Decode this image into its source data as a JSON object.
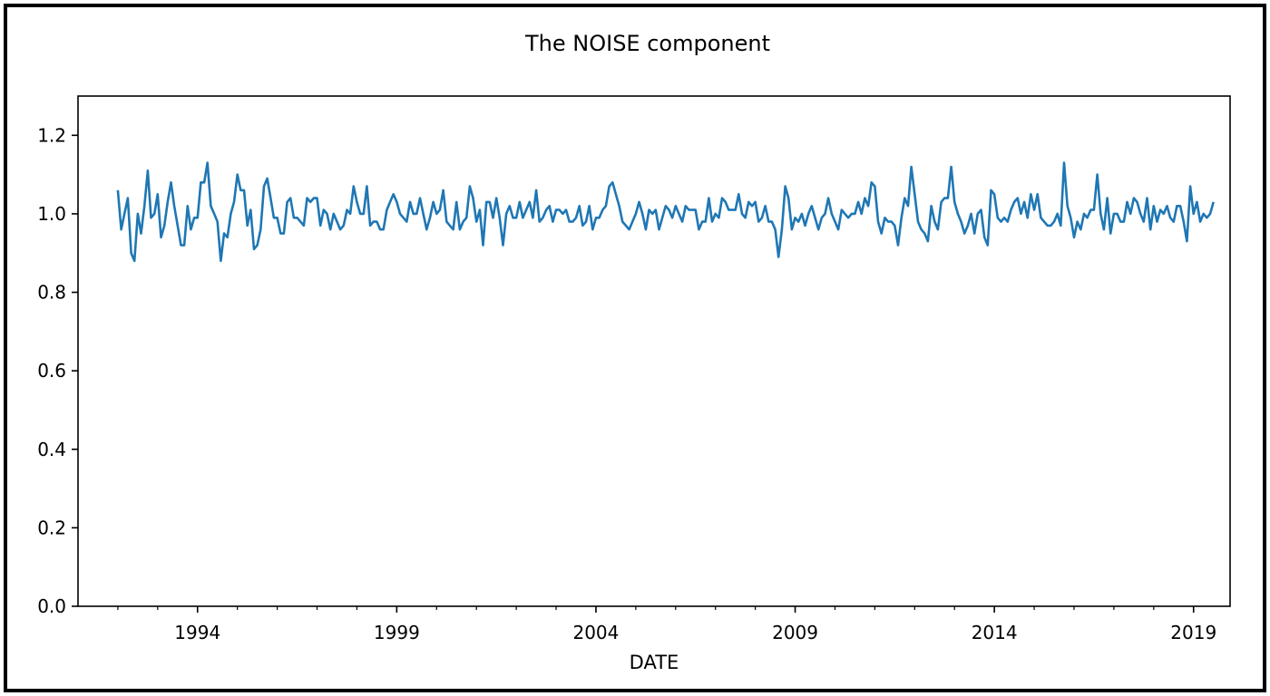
{
  "chart_data": {
    "type": "line",
    "title": "The NOISE component",
    "xlabel": "DATE",
    "ylabel": "",
    "x_start": "1992-01",
    "x_end": "2019-12",
    "x_frequency": "monthly",
    "xlim": [
      "1991-01",
      "2019-12"
    ],
    "ylim": [
      0.0,
      1.3
    ],
    "x_ticks": [
      "1994",
      "1999",
      "2004",
      "2009",
      "2014",
      "2019"
    ],
    "y_ticks": [
      "0.0",
      "0.2",
      "0.4",
      "0.6",
      "0.8",
      "1.0",
      "1.2"
    ],
    "grid": false,
    "legend": "none",
    "series": [
      {
        "color": "#1f77b4",
        "values": [
          1.06,
          0.96,
          1.0,
          1.04,
          0.9,
          0.88,
          1.0,
          0.95,
          1.02,
          1.11,
          0.99,
          1.0,
          1.05,
          0.94,
          0.97,
          1.03,
          1.08,
          1.02,
          0.97,
          0.92,
          0.92,
          1.02,
          0.96,
          0.99,
          0.99,
          1.08,
          1.08,
          1.13,
          1.02,
          1.0,
          0.98,
          0.88,
          0.95,
          0.94,
          1.0,
          1.03,
          1.1,
          1.06,
          1.06,
          0.97,
          1.01,
          0.91,
          0.92,
          0.96,
          1.07,
          1.09,
          1.04,
          0.99,
          0.99,
          0.95,
          0.95,
          1.03,
          1.04,
          0.99,
          0.99,
          0.98,
          0.97,
          1.04,
          1.03,
          1.04,
          1.04,
          0.97,
          1.01,
          1.0,
          0.96,
          1.0,
          0.98,
          0.96,
          0.97,
          1.01,
          1.0,
          1.07,
          1.03,
          1.0,
          1.0,
          1.07,
          0.97,
          0.98,
          0.98,
          0.96,
          0.96,
          1.01,
          1.03,
          1.05,
          1.03,
          1.0,
          0.99,
          0.98,
          1.03,
          1.0,
          1.0,
          1.04,
          1.0,
          0.96,
          0.99,
          1.03,
          1.0,
          1.01,
          1.06,
          0.98,
          0.97,
          0.96,
          1.03,
          0.96,
          0.98,
          0.99,
          1.07,
          1.04,
          0.98,
          1.01,
          0.92,
          1.03,
          1.03,
          0.99,
          1.04,
          0.99,
          0.92,
          1.0,
          1.02,
          0.99,
          0.99,
          1.03,
          0.99,
          1.01,
          1.03,
          0.99,
          1.06,
          0.98,
          0.99,
          1.01,
          1.02,
          0.98,
          1.01,
          1.01,
          1.0,
          1.01,
          0.98,
          0.98,
          0.99,
          1.02,
          0.97,
          0.98,
          1.02,
          0.96,
          0.99,
          0.99,
          1.01,
          1.02,
          1.07,
          1.08,
          1.05,
          1.02,
          0.98,
          0.97,
          0.96,
          0.98,
          1.0,
          1.03,
          1.0,
          0.96,
          1.01,
          1.0,
          1.01,
          0.96,
          0.99,
          1.02,
          1.01,
          0.99,
          1.02,
          1.0,
          0.98,
          1.02,
          1.01,
          1.01,
          1.01,
          0.96,
          0.98,
          0.98,
          1.04,
          0.98,
          1.0,
          0.99,
          1.04,
          1.03,
          1.01,
          1.01,
          1.01,
          1.05,
          1.0,
          0.99,
          1.03,
          1.02,
          1.03,
          0.98,
          0.99,
          1.02,
          0.98,
          0.98,
          0.96,
          0.89,
          0.96,
          1.07,
          1.04,
          0.96,
          0.99,
          0.98,
          1.0,
          0.97,
          1.0,
          1.02,
          0.99,
          0.96,
          0.99,
          1.0,
          1.04,
          1.0,
          0.98,
          0.96,
          1.01,
          1.0,
          0.99,
          1.0,
          1.0,
          1.03,
          1.0,
          1.04,
          1.02,
          1.08,
          1.07,
          0.98,
          0.95,
          0.99,
          0.98,
          0.98,
          0.97,
          0.92,
          0.99,
          1.04,
          1.02,
          1.12,
          1.05,
          0.98,
          0.96,
          0.95,
          0.93,
          1.02,
          0.98,
          0.96,
          1.03,
          1.04,
          1.04,
          1.12,
          1.03,
          1.0,
          0.98,
          0.95,
          0.97,
          1.0,
          0.95,
          1.0,
          1.01,
          0.94,
          0.92,
          1.06,
          1.05,
          0.99,
          0.98,
          0.99,
          0.98,
          1.01,
          1.03,
          1.04,
          1.0,
          1.03,
          0.99,
          1.05,
          1.01,
          1.05,
          0.99,
          0.98,
          0.97,
          0.97,
          0.98,
          1.0,
          0.97,
          1.13,
          1.02,
          0.99,
          0.94,
          0.98,
          0.96,
          1.0,
          0.99,
          1.01,
          1.01,
          1.1,
          1.0,
          0.96,
          1.04,
          0.95,
          1.0,
          1.0,
          0.98,
          0.98,
          1.03,
          1.0,
          1.04,
          1.03,
          1.0,
          0.98,
          1.04,
          0.96,
          1.02,
          0.98,
          1.01,
          1.0,
          1.02,
          0.99,
          0.98,
          1.02,
          1.02,
          0.98,
          0.93,
          1.07,
          1.0,
          1.03,
          0.98,
          1.0,
          0.99,
          1.0,
          1.03
        ]
      }
    ]
  }
}
